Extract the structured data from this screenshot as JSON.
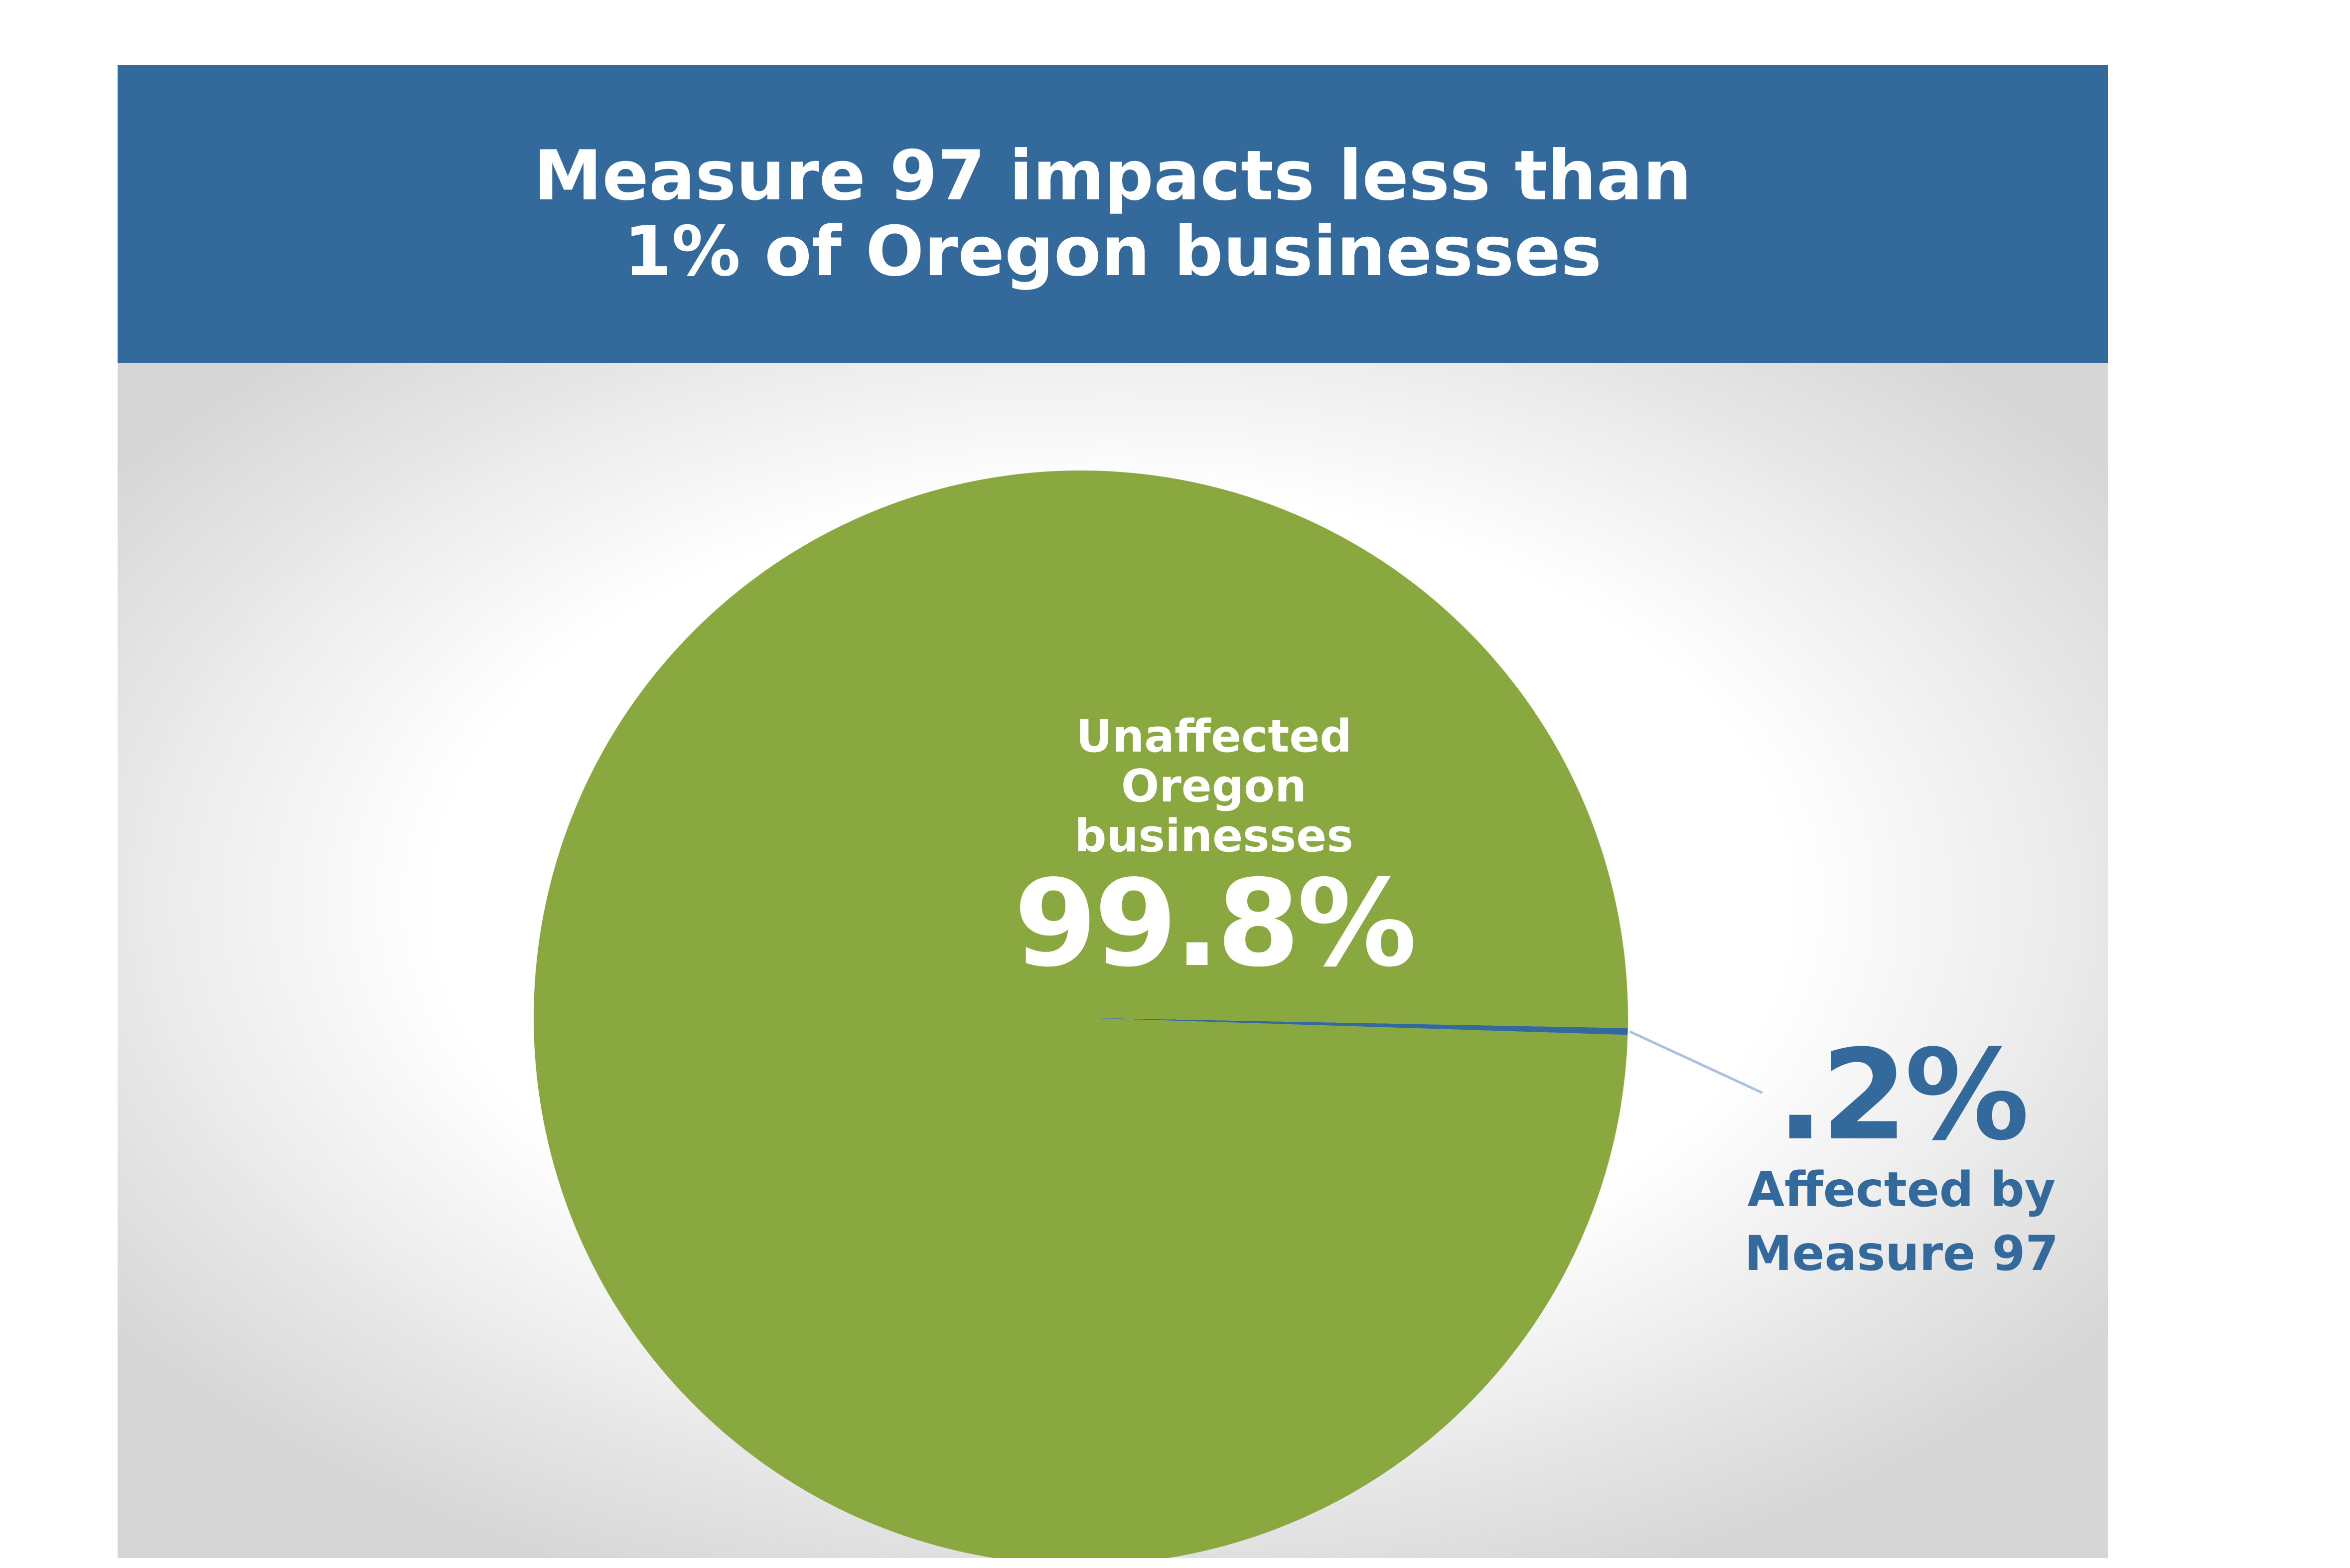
{
  "colors": {
    "header_bg": "#34699b",
    "unaffected_slice": "#89a83f",
    "affected_slice": "#34699b",
    "leader_line": "#a9c1de",
    "background_center": "#ffffff",
    "background_edge": "#d6d6d6",
    "unaffected_text": "#ffffff",
    "affected_text": "#34699b"
  },
  "header": {
    "title_line1": "Measure 97 impacts less than",
    "title_line2": "1% of Oregon businesses"
  },
  "labels": {
    "unaffected_name_lines": [
      "Unaffected",
      "Oregon",
      "businesses"
    ],
    "unaffected_percent": "99.8%",
    "affected_percent": ".2%",
    "affected_name_lines": [
      "Affected by",
      "Measure 97"
    ]
  },
  "chart_data": {
    "type": "pie",
    "title": "Measure 97 impacts less than 1% of Oregon businesses",
    "unit": "%",
    "slices": [
      {
        "label": "Unaffected Oregon businesses",
        "value": 99.8
      },
      {
        "label": "Affected by Measure 97",
        "value": 0.2
      }
    ],
    "legend": "none",
    "data_labels": [
      "99.8%",
      ".2%"
    ]
  }
}
